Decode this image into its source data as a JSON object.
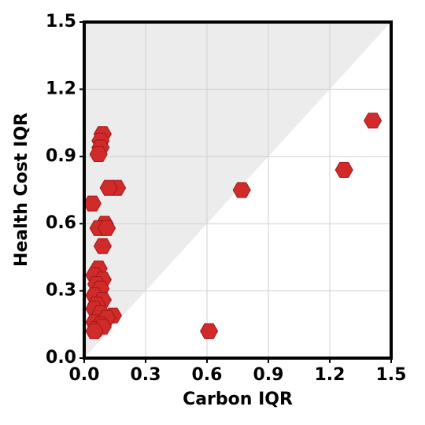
{
  "chart_data": {
    "type": "scatter",
    "x_label": "Carbon IQR",
    "y_label": "Health Cost IQR",
    "xlim": [
      0,
      1.5
    ],
    "ylim": [
      0,
      1.5
    ],
    "xticks": [
      {
        "value": 0,
        "label": "0.0"
      },
      0.3,
      0.6,
      0.9,
      1.2,
      1.5
    ],
    "yticks": [
      {
        "value": 0,
        "label": "0.0"
      },
      0.3,
      0.6,
      0.9,
      1.2,
      1.5
    ],
    "grid": true,
    "color": "#d12a2a",
    "x": [
      1.41,
      1.27,
      0.77,
      0.61,
      0.16,
      0.12,
      0.09,
      0.08,
      0.08,
      0.07,
      0.04,
      0.1,
      0.07,
      0.11,
      0.09,
      0.07,
      0.05,
      0.09,
      0.06,
      0.08,
      0.05,
      0.09,
      0.06,
      0.05,
      0.08,
      0.14,
      0.11,
      0.05,
      0.08,
      0.06,
      0.09,
      0.05
    ],
    "y": [
      1.06,
      0.84,
      0.75,
      0.12,
      0.76,
      0.76,
      1.0,
      0.97,
      0.94,
      0.91,
      0.69,
      0.6,
      0.58,
      0.58,
      0.5,
      0.4,
      0.37,
      0.35,
      0.33,
      0.31,
      0.28,
      0.26,
      0.24,
      0.22,
      0.2,
      0.19,
      0.18,
      0.16,
      0.15,
      0.13,
      0.14,
      0.12
    ]
  }
}
